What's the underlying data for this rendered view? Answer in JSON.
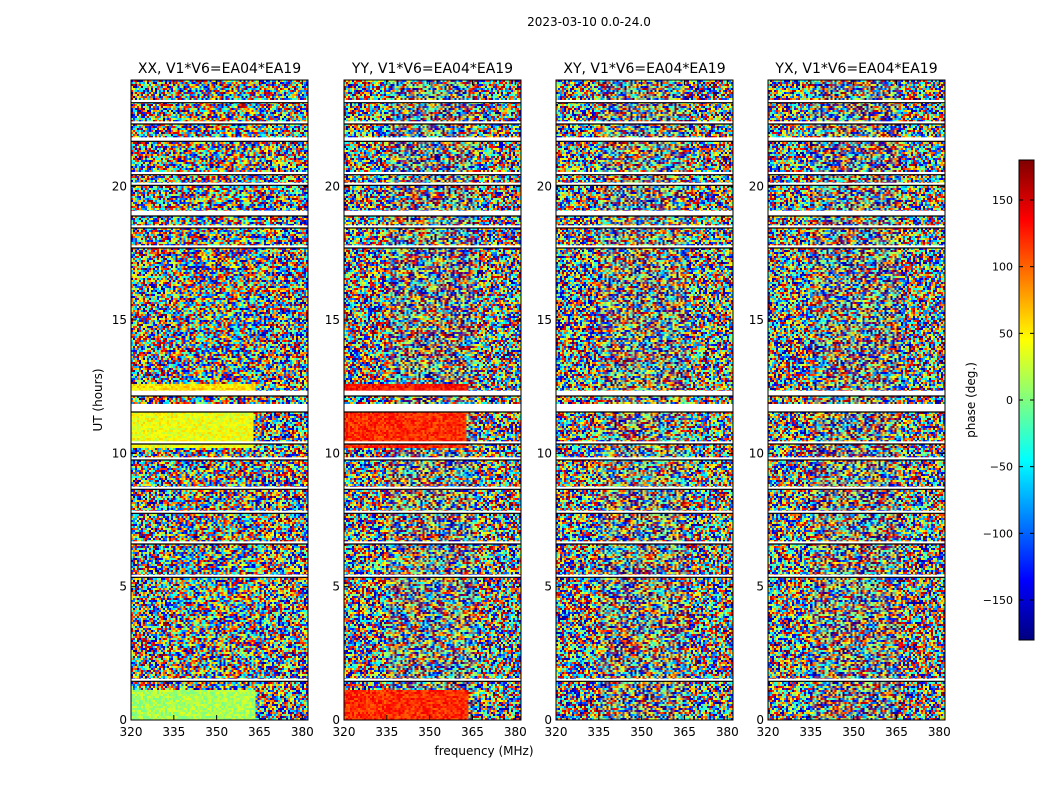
{
  "chart_data": {
    "type": "heatmap",
    "suptitle": "2023-03-10 0.0-24.0",
    "xlabel": "frequency (MHz)",
    "ylabel": "UT (hours)",
    "xlim": [
      320,
      382
    ],
    "ylim": [
      0,
      24
    ],
    "xticks": [
      320,
      335,
      350,
      365,
      380
    ],
    "yticks": [
      0,
      5,
      10,
      15,
      20
    ],
    "panels": [
      {
        "title": "XX, V1*V6=EA04*EA19",
        "polarization": "XX"
      },
      {
        "title": "YY, V1*V6=EA04*EA19",
        "polarization": "YY"
      },
      {
        "title": "XY, V1*V6=EA04*EA19",
        "polarization": "XY"
      },
      {
        "title": "YX, V1*V6=EA04*EA19",
        "polarization": "YX"
      }
    ],
    "colorbar": {
      "label": "phase (deg.)",
      "range": [
        -180,
        180
      ],
      "ticks": [
        150,
        100,
        50,
        0,
        -50,
        -100,
        -150
      ],
      "tick_labels": [
        "150",
        "100",
        "50",
        "0",
        "−50",
        "−100",
        "−150"
      ],
      "colormap": "jet"
    },
    "flagged_time_ranges_hours": [
      [
        1.45,
        1.55
      ],
      [
        5.35,
        5.45
      ],
      [
        6.6,
        6.7
      ],
      [
        7.75,
        7.85
      ],
      [
        8.65,
        8.75
      ],
      [
        9.75,
        9.85
      ],
      [
        10.35,
        10.45
      ],
      [
        11.55,
        11.85
      ],
      [
        12.15,
        12.35
      ],
      [
        17.7,
        17.8
      ],
      [
        18.45,
        18.55
      ],
      [
        18.9,
        19.1
      ],
      [
        20.05,
        20.15
      ],
      [
        20.45,
        20.55
      ],
      [
        21.7,
        21.85
      ],
      [
        22.35,
        22.45
      ],
      [
        23.15,
        23.25
      ]
    ],
    "coherent_regions": [
      {
        "panel": "XX",
        "t": [
          0.0,
          1.1
        ],
        "f": [
          320,
          364
        ],
        "phase_deg": 15
      },
      {
        "panel": "XX",
        "t": [
          10.2,
          11.6
        ],
        "f": [
          320,
          363
        ],
        "phase_deg": 40
      },
      {
        "panel": "XX",
        "t": [
          12.3,
          12.6
        ],
        "f": [
          320,
          364
        ],
        "phase_deg": 55
      },
      {
        "panel": "YY",
        "t": [
          0.0,
          1.1
        ],
        "f": [
          320,
          364
        ],
        "phase_deg": 120
      },
      {
        "panel": "YY",
        "t": [
          10.2,
          11.6
        ],
        "f": [
          320,
          363
        ],
        "phase_deg": 120
      },
      {
        "panel": "YY",
        "t": [
          12.3,
          12.6
        ],
        "f": [
          320,
          364
        ],
        "phase_deg": 130
      }
    ]
  }
}
